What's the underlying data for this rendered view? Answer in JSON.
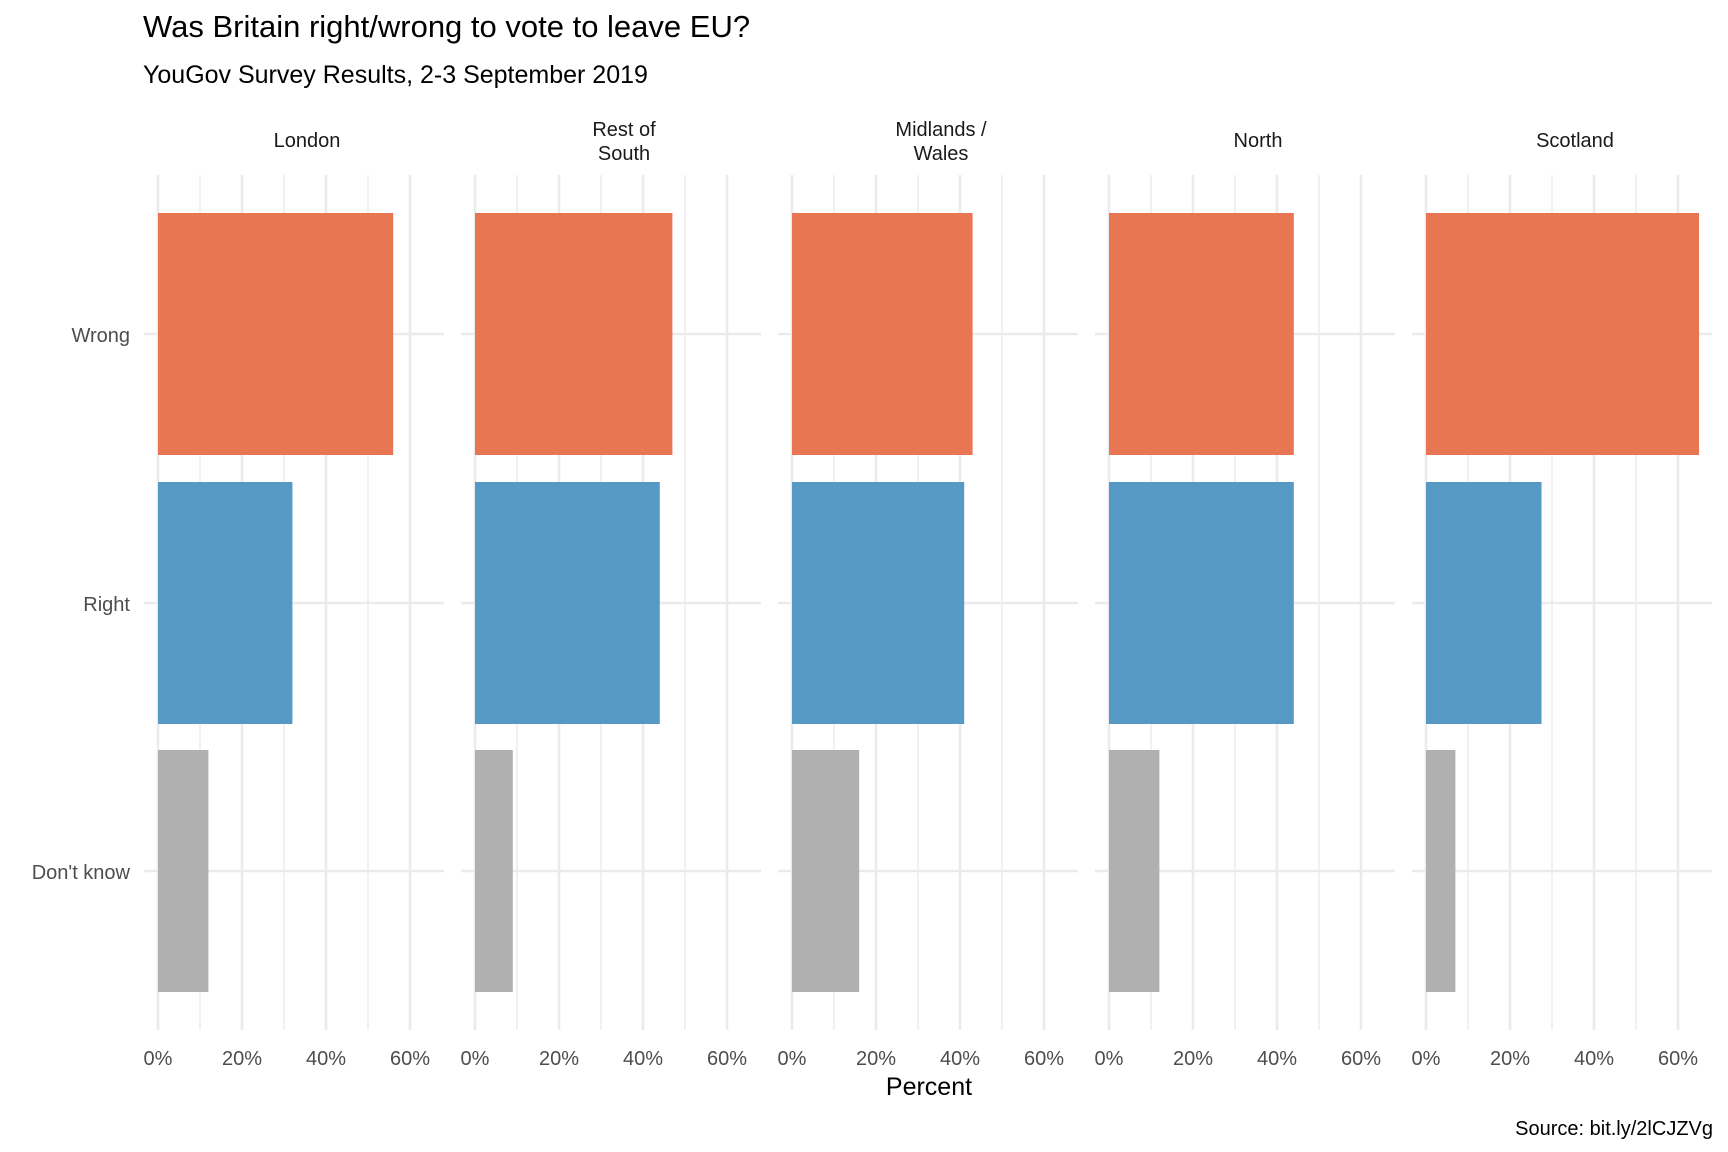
{
  "chart_data": {
    "type": "bar",
    "orientation": "horizontal",
    "title": "Was Britain right/wrong to vote to leave EU?",
    "subtitle": "YouGov Survey Results, 2-3 September 2019",
    "xlabel": "Percent",
    "ylabel": "",
    "caption": "Source: bit.ly/2lCJZVg",
    "categories": [
      "Wrong",
      "Right",
      "Don't know"
    ],
    "xlim": [
      0,
      66
    ],
    "x_ticks": [
      0,
      20,
      40,
      60
    ],
    "x_tick_labels": [
      "0%",
      "20%",
      "40%",
      "60%"
    ],
    "grid": true,
    "legend": "none",
    "colors": {
      "Wrong": "#E87652",
      "Right": "#5599C4",
      "Don't know": "#B0B0B0"
    },
    "panels": [
      {
        "label_lines": [
          "London"
        ],
        "values": [
          56,
          32,
          12
        ]
      },
      {
        "label_lines": [
          "Rest of",
          "South"
        ],
        "values": [
          47,
          44,
          9
        ]
      },
      {
        "label_lines": [
          "Midlands /",
          "Wales"
        ],
        "values": [
          43,
          41,
          16
        ]
      },
      {
        "label_lines": [
          "North"
        ],
        "values": [
          44,
          44,
          12
        ]
      },
      {
        "label_lines": [
          "Scotland"
        ],
        "values": [
          65,
          27.5,
          7
        ]
      }
    ]
  }
}
